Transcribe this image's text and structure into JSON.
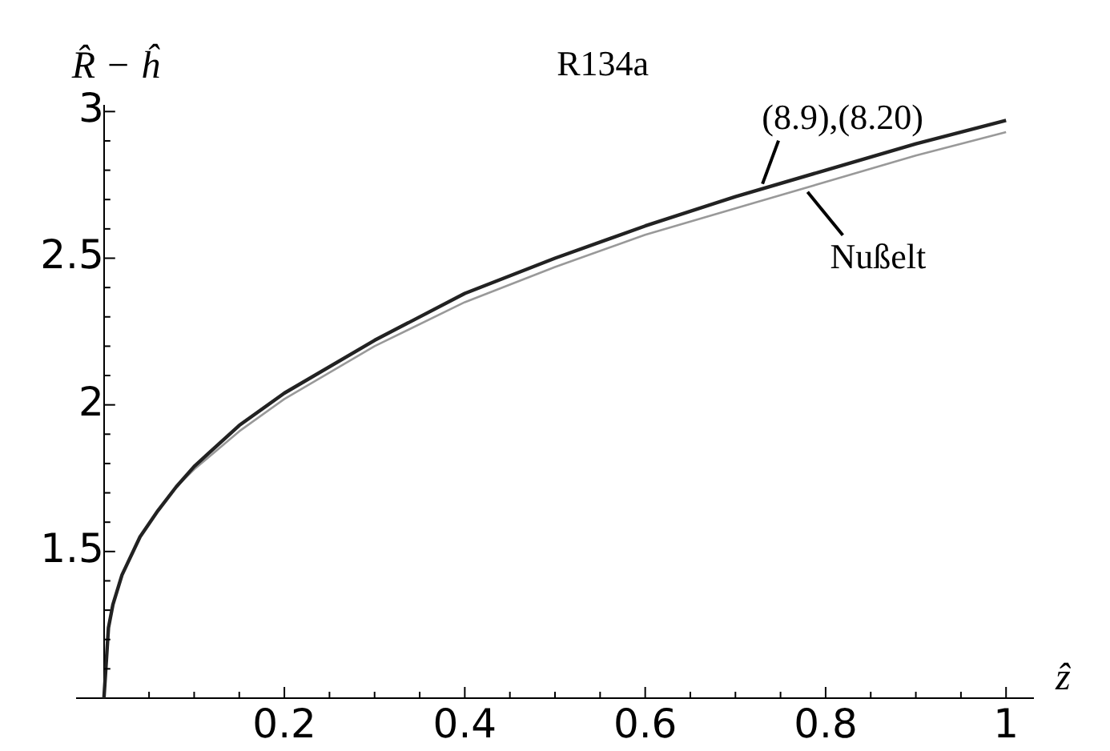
{
  "chart_data": {
    "type": "line",
    "xlabel": "ẑ",
    "ylabel": "R̂ − ĥ",
    "annotations": [
      "R134a"
    ],
    "x": [
      0,
      0.005,
      0.01,
      0.02,
      0.04,
      0.06,
      0.08,
      0.1,
      0.15,
      0.2,
      0.3,
      0.4,
      0.5,
      0.6,
      0.7,
      0.8,
      0.9,
      1
    ],
    "series": [
      {
        "name": "(8.9),(8.20)",
        "color": "#222222",
        "values": [
          1,
          1.24,
          1.32,
          1.42,
          1.55,
          1.64,
          1.72,
          1.79,
          1.93,
          2.04,
          2.22,
          2.38,
          2.5,
          2.61,
          2.71,
          2.8,
          2.89,
          2.97
        ]
      },
      {
        "name": "Nußelt",
        "color": "#999999",
        "values": [
          1,
          1.24,
          1.32,
          1.42,
          1.55,
          1.64,
          1.72,
          1.78,
          1.91,
          2.02,
          2.2,
          2.35,
          2.47,
          2.58,
          2.67,
          2.76,
          2.85,
          2.93
        ]
      }
    ],
    "xlim": [
      -0.03,
      1.03
    ],
    "ylim": [
      1,
      3.02
    ],
    "xticks": [
      {
        "value": 0.05,
        "label": null
      },
      {
        "value": 0.1,
        "label": null
      },
      {
        "value": 0.15,
        "label": null
      },
      0.2,
      {
        "value": 0.25,
        "label": null
      },
      {
        "value": 0.3,
        "label": null
      },
      {
        "value": 0.35,
        "label": null
      },
      0.4,
      {
        "value": 0.45,
        "label": null
      },
      {
        "value": 0.5,
        "label": null
      },
      {
        "value": 0.55,
        "label": null
      },
      0.6,
      {
        "value": 0.65,
        "label": null
      },
      {
        "value": 0.7,
        "label": null
      },
      {
        "value": 0.75,
        "label": null
      },
      0.8,
      {
        "value": 0.85,
        "label": null
      },
      {
        "value": 0.9,
        "label": null
      },
      {
        "value": 0.95,
        "label": null
      },
      1
    ],
    "yticks": [
      {
        "value": 1.1,
        "label": null
      },
      {
        "value": 1.2,
        "label": null
      },
      {
        "value": 1.3,
        "label": null
      },
      {
        "value": 1.4,
        "label": null
      },
      1.5,
      {
        "value": 1.6,
        "label": null
      },
      {
        "value": 1.7,
        "label": null
      },
      {
        "value": 1.8,
        "label": null
      },
      {
        "value": 1.9,
        "label": null
      },
      2,
      {
        "value": 2.1,
        "label": null
      },
      {
        "value": 2.2,
        "label": null
      },
      {
        "value": 2.3,
        "label": null
      },
      {
        "value": 2.4,
        "label": null
      },
      2.5,
      {
        "value": 2.6,
        "label": null
      },
      {
        "value": 2.7,
        "label": null
      },
      {
        "value": 2.8,
        "label": null
      },
      {
        "value": 2.9,
        "label": null
      },
      3
    ],
    "grid": false,
    "legend": false,
    "marker": "none",
    "line_style": "solid"
  }
}
